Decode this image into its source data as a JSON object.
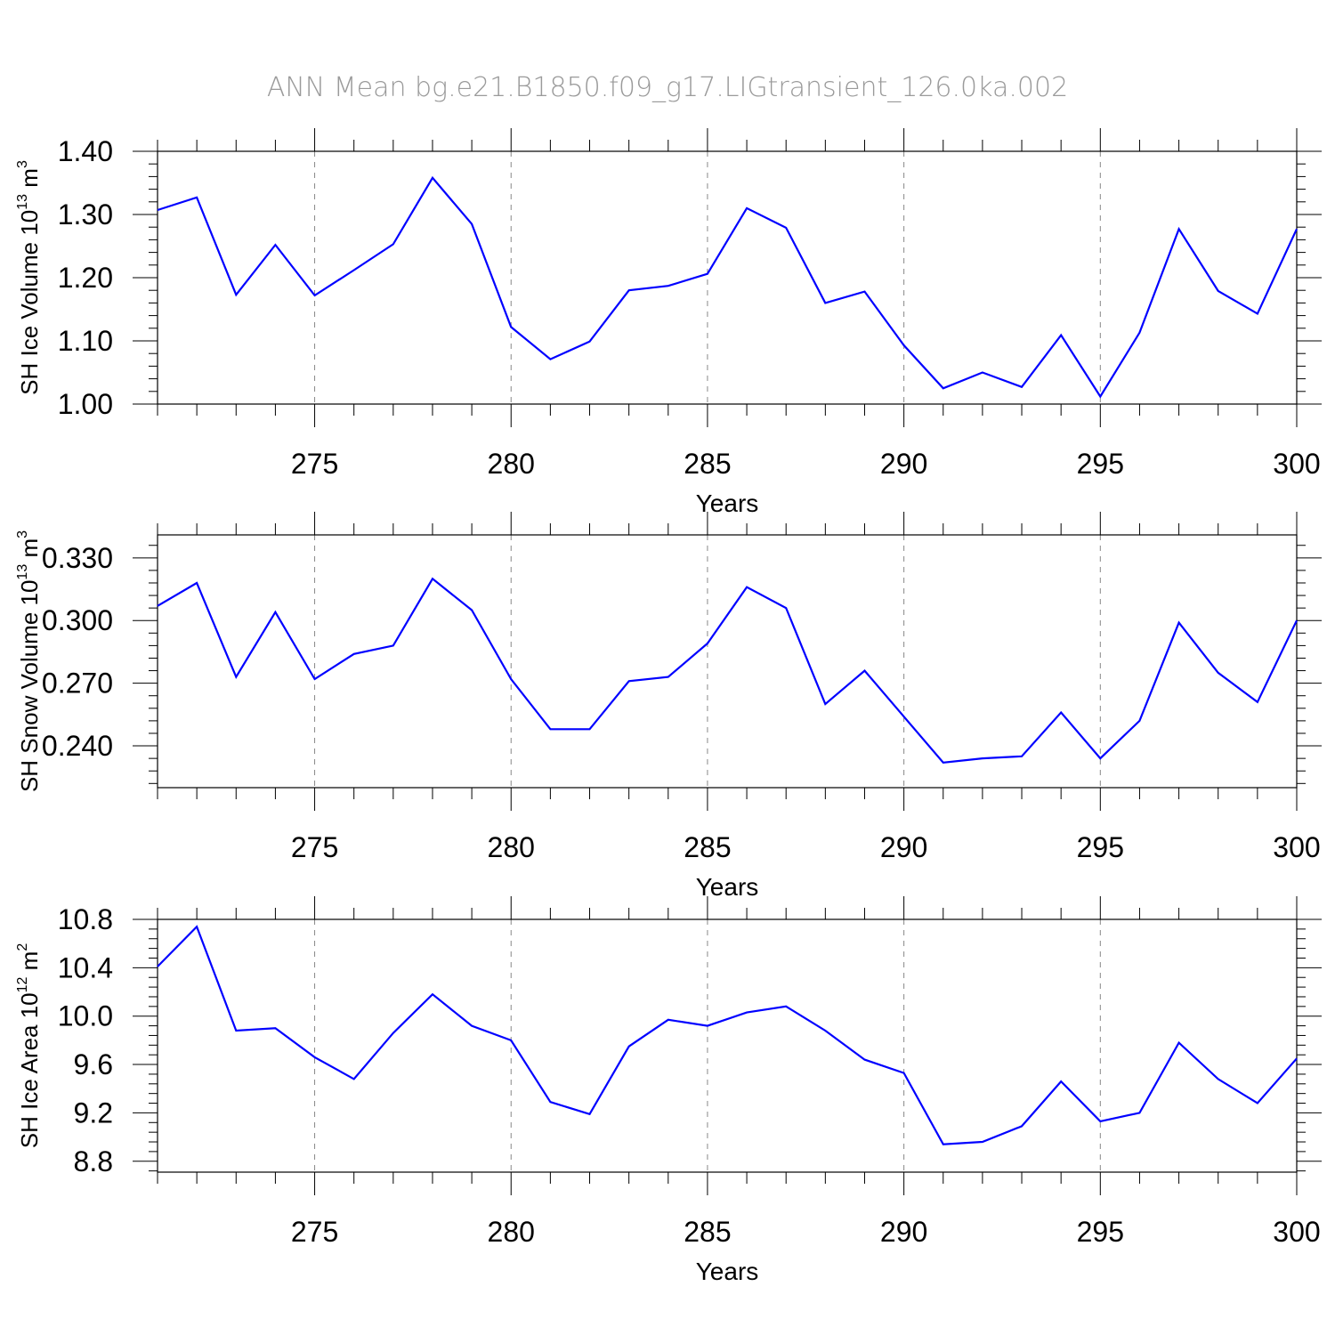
{
  "title": "ANN Mean bg.e21.B1850.f09_g17.LIGtransient_126.0ka.002",
  "colors": {
    "line": "#0000ff",
    "axis": "#000000",
    "grid": "#888888",
    "title": "#9a9a9a"
  },
  "chart_data": [
    {
      "type": "line",
      "ylabel": {
        "main": "SH Ice Volume 10",
        "exp": "13",
        "unit": " m",
        "unit_exp": "3"
      },
      "xlabel": "Years",
      "xlim": [
        271,
        300
      ],
      "ylim": [
        1.0,
        1.4
      ],
      "yticks": [
        1.0,
        1.1,
        1.2,
        1.3,
        1.4
      ],
      "ytick_labels": [
        "1.00",
        "1.10",
        "1.20",
        "1.30",
        "1.40"
      ],
      "xticks": [
        275,
        280,
        285,
        290,
        295,
        300
      ],
      "xtick_labels": [
        "275",
        "280",
        "285",
        "290",
        "295",
        "300"
      ],
      "grid": "vertical dashed at major x ticks",
      "x": [
        271,
        272,
        273,
        274,
        275,
        276,
        277,
        278,
        279,
        280,
        281,
        282,
        283,
        284,
        285,
        286,
        287,
        288,
        289,
        290,
        291,
        292,
        293,
        294,
        295,
        296,
        297,
        298,
        299,
        300
      ],
      "values": [
        1.307,
        1.327,
        1.173,
        1.252,
        1.172,
        1.212,
        1.253,
        1.358,
        1.285,
        1.122,
        1.071,
        1.099,
        1.18,
        1.187,
        1.206,
        1.31,
        1.279,
        1.16,
        1.178,
        1.093,
        1.025,
        1.05,
        1.027,
        1.109,
        1.012,
        1.113,
        1.277,
        1.179,
        1.143,
        1.277
      ]
    },
    {
      "type": "line",
      "ylabel": {
        "main": "SH Snow Volume 10",
        "exp": "13",
        "unit": " m",
        "unit_exp": "3"
      },
      "xlabel": "Years",
      "xlim": [
        271,
        300
      ],
      "ylim": [
        0.22,
        0.341
      ],
      "yticks": [
        0.24,
        0.27,
        0.3,
        0.33
      ],
      "ytick_labels": [
        "0.240",
        "0.270",
        "0.300",
        "0.330"
      ],
      "xticks": [
        275,
        280,
        285,
        290,
        295,
        300
      ],
      "xtick_labels": [
        "275",
        "280",
        "285",
        "290",
        "295",
        "300"
      ],
      "grid": "vertical dashed at major x ticks",
      "x": [
        271,
        272,
        273,
        274,
        275,
        276,
        277,
        278,
        279,
        280,
        281,
        282,
        283,
        284,
        285,
        286,
        287,
        288,
        289,
        290,
        291,
        292,
        293,
        294,
        295,
        296,
        297,
        298,
        299,
        300
      ],
      "values": [
        0.307,
        0.318,
        0.273,
        0.304,
        0.272,
        0.284,
        0.288,
        0.32,
        0.305,
        0.272,
        0.248,
        0.248,
        0.271,
        0.273,
        0.289,
        0.316,
        0.306,
        0.26,
        0.276,
        0.254,
        0.232,
        0.234,
        0.235,
        0.256,
        0.234,
        0.252,
        0.299,
        0.275,
        0.261,
        0.3
      ]
    },
    {
      "type": "line",
      "ylabel": {
        "main": "SH Ice Area 10",
        "exp": "12",
        "unit": " m",
        "unit_exp": "2"
      },
      "xlabel": "Years",
      "xlim": [
        271,
        300
      ],
      "ylim": [
        8.71,
        10.8
      ],
      "yticks": [
        8.8,
        9.2,
        9.6,
        10.0,
        10.4,
        10.8
      ],
      "ytick_labels": [
        "8.8",
        "9.2",
        "9.6",
        "10.0",
        "10.4",
        "10.8"
      ],
      "xticks": [
        275,
        280,
        285,
        290,
        295,
        300
      ],
      "xtick_labels": [
        "275",
        "280",
        "285",
        "290",
        "295",
        "300"
      ],
      "grid": "vertical dashed at major x ticks",
      "x": [
        271,
        272,
        273,
        274,
        275,
        276,
        277,
        278,
        279,
        280,
        281,
        282,
        283,
        284,
        285,
        286,
        287,
        288,
        289,
        290,
        291,
        292,
        293,
        294,
        295,
        296,
        297,
        298,
        299,
        300
      ],
      "values": [
        10.41,
        10.74,
        9.88,
        9.9,
        9.66,
        9.48,
        9.86,
        10.18,
        9.92,
        9.8,
        9.29,
        9.19,
        9.75,
        9.97,
        9.92,
        10.03,
        10.08,
        9.88,
        9.64,
        9.53,
        8.94,
        8.96,
        9.09,
        9.46,
        9.13,
        9.2,
        9.78,
        9.48,
        9.28,
        9.65
      ]
    }
  ]
}
